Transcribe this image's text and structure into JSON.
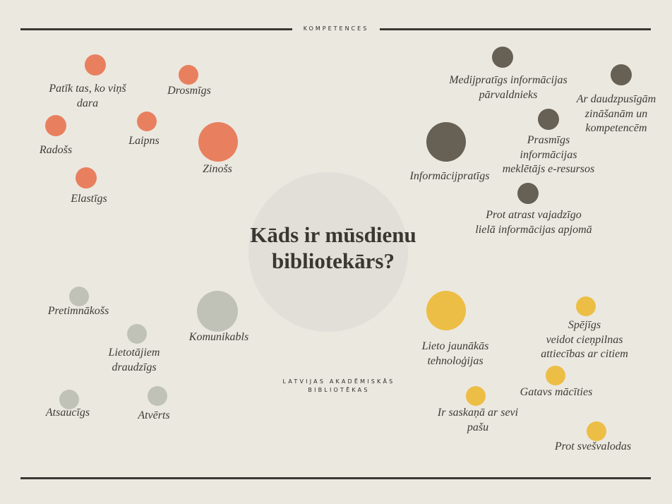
{
  "header": {
    "section_title": "KOMPETENCES"
  },
  "center": {
    "title_line1": "Kāds ir mūsdienu",
    "title_line2": "bibliotekārs?"
  },
  "organization": {
    "line1": "LATVIJAS AKADĒMISKĀS",
    "line2": "BIBLIOTĒKAS"
  },
  "colors": {
    "orange": "#e8805f",
    "dark": "#676054",
    "gray": "#c0c2b8",
    "yellow": "#ecbe45"
  },
  "groups": [
    {
      "name": "personality",
      "color": "#e8805f",
      "items": [
        {
          "label": "Patīk tas, ko viņš\ndara"
        },
        {
          "label": "Drosmīgs"
        },
        {
          "label": "Radošs"
        },
        {
          "label": "Laipns"
        },
        {
          "label": "Zinošs"
        },
        {
          "label": "Elastīgs"
        }
      ]
    },
    {
      "name": "information",
      "color": "#676054",
      "items": [
        {
          "label": "Medijpratīgs informācijas\npārvaldnieks"
        },
        {
          "label": "Ar daudzpusīgām\nzināšanām un\nkompetencēm"
        },
        {
          "label": "Prasmīgs\ninformācijas\nmeklētājs e-resursos"
        },
        {
          "label": "Informācijpratīgs"
        },
        {
          "label": "Prot atrast vajadzīgo\nlielā informācijas apjomā"
        }
      ]
    },
    {
      "name": "communication",
      "color": "#c0c2b8",
      "items": [
        {
          "label": "Pretimnākošs"
        },
        {
          "label": "Komunikabls"
        },
        {
          "label": "Lietotājiem\ndraudzīgs"
        },
        {
          "label": "Atsaucīgs"
        },
        {
          "label": "Atvērts"
        }
      ]
    },
    {
      "name": "development",
      "color": "#ecbe45",
      "items": [
        {
          "label": "Lieto jaunākās\ntehnoloģijas"
        },
        {
          "label": "Spējīgs\nveidot cieņpilnas\nattiecības ar citiem"
        },
        {
          "label": "Gatavs mācīties"
        },
        {
          "label": "Ir saskaņā ar sevi\npašu"
        },
        {
          "label": "Prot svešvalodas"
        }
      ]
    }
  ]
}
